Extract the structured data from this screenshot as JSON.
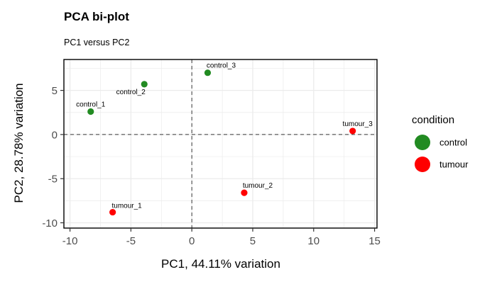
{
  "chart_data": {
    "type": "scatter",
    "title": "PCA bi-plot",
    "subtitle": "PC1 versus PC2",
    "xlabel": "PC1, 44.11% variation",
    "ylabel": "PC2, 28.78% variation",
    "xlim": [
      -10.5,
      15.2
    ],
    "ylim": [
      -10.6,
      8.5
    ],
    "xticks": [
      -10,
      -5,
      0,
      5,
      10,
      15
    ],
    "yticks": [
      -10,
      -5,
      0,
      5
    ],
    "xtick_labels": [
      "-10",
      "-5",
      "0",
      "5",
      "10",
      "15"
    ],
    "ytick_labels": [
      "-10",
      "-5",
      "0",
      "5"
    ],
    "grid": true,
    "reference_lines": {
      "x": 0,
      "y": 0,
      "style": "dashed"
    },
    "legend": {
      "title": "condition",
      "position": "right",
      "entries": [
        {
          "name": "control",
          "color": "#228B22"
        },
        {
          "name": "tumour",
          "color": "#FF0000"
        }
      ]
    },
    "points": [
      {
        "label": "control_1",
        "x": -8.3,
        "y": 2.6,
        "group": "control"
      },
      {
        "label": "control_2",
        "x": -3.9,
        "y": 5.7,
        "group": "control"
      },
      {
        "label": "control_3",
        "x": 1.3,
        "y": 7.0,
        "group": "control"
      },
      {
        "label": "tumour_1",
        "x": -6.5,
        "y": -8.8,
        "group": "tumour"
      },
      {
        "label": "tumour_2",
        "x": 4.3,
        "y": -6.6,
        "group": "tumour"
      },
      {
        "label": "tumour_3",
        "x": 13.2,
        "y": 0.4,
        "group": "tumour"
      }
    ]
  }
}
